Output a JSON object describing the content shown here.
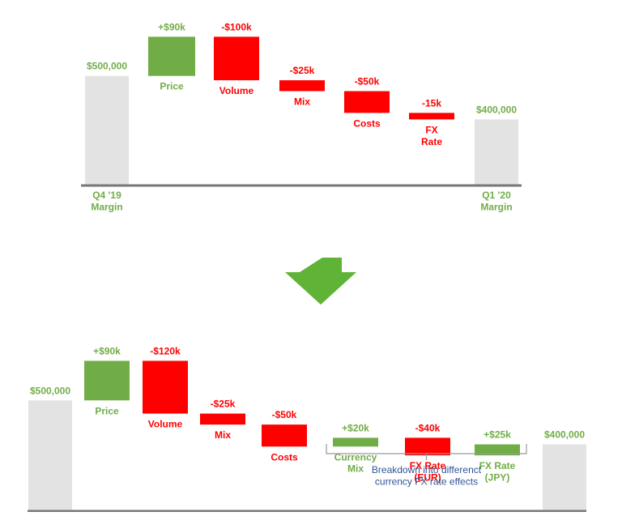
{
  "chart_data": [
    {
      "type": "waterfall",
      "categories": [
        "Q4 '19\nMargin",
        "Price",
        "Volume",
        "Mix",
        "Costs",
        "FX\nRate",
        "Q1 '20\nMargin"
      ],
      "values": [
        500000,
        90000,
        -100000,
        -25000,
        -50000,
        -15000,
        400000
      ],
      "value_labels": [
        "$500,000",
        "+$90k",
        "-$100k",
        "-$25k",
        "-$50k",
        "-15k",
        "$400,000"
      ],
      "measure": [
        "total",
        "relative",
        "relative",
        "relative",
        "relative",
        "relative",
        "total"
      ],
      "colors": {
        "increase": "#70ad47",
        "decrease": "#ff0000",
        "total": "#e3e3e3"
      },
      "ylim": [
        250000,
        600000
      ]
    },
    {
      "type": "waterfall",
      "categories": [
        "",
        "Price",
        "Volume",
        "Mix",
        "Costs",
        "Currency\nMix",
        "FX Rate\n(EUR)",
        "FX Rate\n(JPY)",
        ""
      ],
      "values": [
        500000,
        90000,
        -120000,
        -25000,
        -50000,
        20000,
        -40000,
        25000,
        400000
      ],
      "value_labels": [
        "$500,000",
        "+$90k",
        "-$120k",
        "-$25k",
        "-$50k",
        "+$20k",
        "-$40k",
        "+$25k",
        "$400,000"
      ],
      "measure": [
        "total",
        "relative",
        "relative",
        "relative",
        "relative",
        "relative",
        "relative",
        "relative",
        "total"
      ],
      "colors": {
        "increase": "#70ad47",
        "decrease": "#ff0000",
        "total": "#e3e3e3"
      },
      "ylim": [
        250000,
        600000
      ],
      "annotation": {
        "text": "Breakdown into differenct\ncurrency FX rate effects",
        "from": 5,
        "to": 7,
        "color": "#2f5597"
      }
    }
  ]
}
